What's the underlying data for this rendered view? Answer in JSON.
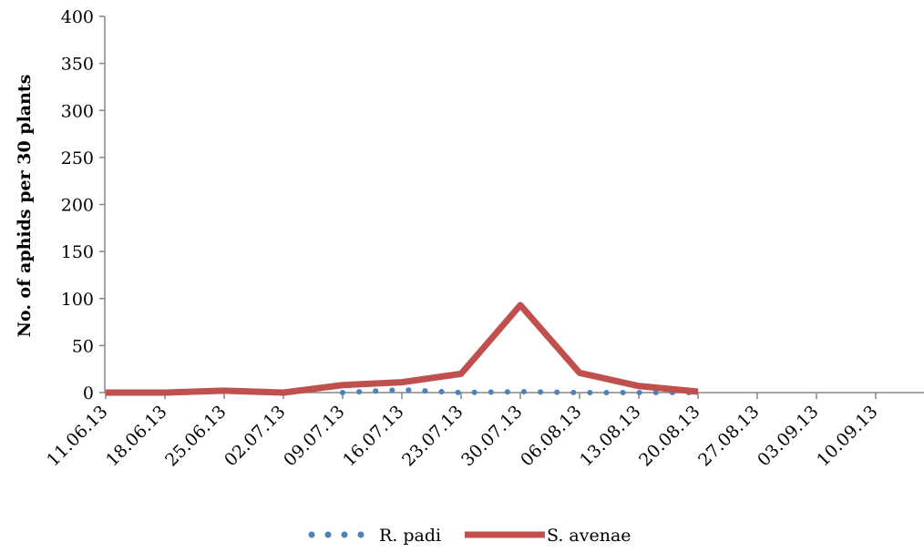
{
  "chart_data": {
    "type": "line",
    "title": "",
    "xlabel": "",
    "ylabel": "No. of aphids per 30 plants",
    "ylim": [
      0,
      400
    ],
    "yticks": [
      0,
      50,
      100,
      150,
      200,
      250,
      300,
      350,
      400
    ],
    "x_tick_labels": [
      "11.06.13",
      "18.06.13",
      "25.06.13",
      "02.07.13",
      "09.07.13",
      "16.07.13",
      "23.07.13",
      "30.07.13",
      "06.08.13",
      "13.08.13",
      "20.08.13",
      "27.08.13",
      "03.09.13",
      "10.09.13"
    ],
    "grid": false,
    "legend_position": "bottom",
    "series": [
      {
        "name": "R. padi",
        "style": "dotted",
        "color": "#4f81bd",
        "points": [
          {
            "x": "09.07.13",
            "y": 0
          },
          {
            "x": "16.07.13",
            "y": 3
          },
          {
            "x": "23.07.13",
            "y": 0
          },
          {
            "x": "30.07.13",
            "y": 1
          },
          {
            "x": "06.08.13",
            "y": 0
          },
          {
            "x": "13.08.13",
            "y": 0
          },
          {
            "x": "20.08.13",
            "y": 0
          }
        ]
      },
      {
        "name": "S. avenae",
        "style": "solid",
        "color": "#c0504d",
        "points": [
          {
            "x": "11.06.13",
            "y": 0
          },
          {
            "x": "18.06.13",
            "y": 0
          },
          {
            "x": "25.06.13",
            "y": 2
          },
          {
            "x": "02.07.13",
            "y": 0
          },
          {
            "x": "09.07.13",
            "y": 8
          },
          {
            "x": "16.07.13",
            "y": 11
          },
          {
            "x": "23.07.13",
            "y": 20
          },
          {
            "x": "30.07.13",
            "y": 93
          },
          {
            "x": "06.08.13",
            "y": 21
          },
          {
            "x": "13.08.13",
            "y": 7
          },
          {
            "x": "20.08.13",
            "y": 1
          }
        ]
      }
    ]
  }
}
